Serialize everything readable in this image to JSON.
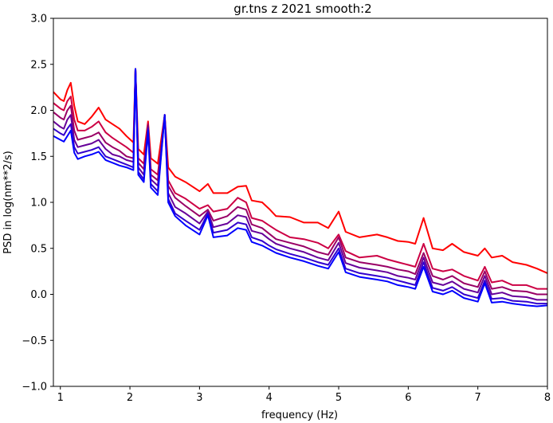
{
  "chart_data": {
    "type": "line",
    "title": "gr.tns z 2021 smooth:2",
    "xlabel": "frequency (Hz)",
    "ylabel": "PSD in log(nm**2/s)",
    "xlim": [
      0.9,
      8.0
    ],
    "ylim": [
      -1.0,
      3.0
    ],
    "xticks": [
      1,
      2,
      3,
      4,
      5,
      6,
      7,
      8
    ],
    "xtick_labels": [
      "1",
      "2",
      "3",
      "4",
      "5",
      "6",
      "7",
      "8"
    ],
    "yticks": [
      -1.0,
      -0.5,
      0.0,
      0.5,
      1.0,
      1.5,
      2.0,
      2.5,
      3.0
    ],
    "ytick_labels": [
      "−1.0",
      "−0.5",
      "0.0",
      "0.5",
      "1.0",
      "1.5",
      "2.0",
      "2.5",
      "3.0"
    ],
    "grid": false,
    "legend": false,
    "x": [
      0.9,
      1.0,
      1.05,
      1.1,
      1.15,
      1.2,
      1.25,
      1.35,
      1.45,
      1.55,
      1.65,
      1.75,
      1.85,
      1.95,
      2.05,
      2.08,
      2.12,
      2.2,
      2.26,
      2.3,
      2.4,
      2.5,
      2.55,
      2.65,
      2.8,
      3.0,
      3.12,
      3.2,
      3.4,
      3.55,
      3.67,
      3.75,
      3.9,
      4.0,
      4.1,
      4.3,
      4.5,
      4.7,
      4.85,
      5.0,
      5.1,
      5.3,
      5.55,
      5.7,
      5.85,
      6.0,
      6.1,
      6.22,
      6.35,
      6.5,
      6.63,
      6.8,
      7.0,
      7.1,
      7.2,
      7.35,
      7.5,
      7.7,
      7.85,
      8.0
    ],
    "series": [
      {
        "color": "#ff0000",
        "values": [
          2.2,
          2.12,
          2.1,
          2.22,
          2.3,
          2.05,
          1.88,
          1.85,
          1.93,
          2.03,
          1.9,
          1.85,
          1.8,
          1.72,
          1.65,
          2.45,
          1.58,
          1.52,
          1.88,
          1.48,
          1.42,
          1.95,
          1.38,
          1.28,
          1.22,
          1.12,
          1.2,
          1.1,
          1.1,
          1.17,
          1.18,
          1.02,
          1.0,
          0.93,
          0.85,
          0.84,
          0.78,
          0.78,
          0.72,
          0.9,
          0.68,
          0.62,
          0.65,
          0.62,
          0.58,
          0.57,
          0.55,
          0.83,
          0.5,
          0.48,
          0.55,
          0.46,
          0.42,
          0.5,
          0.4,
          0.42,
          0.35,
          0.32,
          0.28,
          0.23
        ]
      },
      {
        "color": "#cc0044",
        "values": [
          2.08,
          2.02,
          2.0,
          2.1,
          2.15,
          1.9,
          1.78,
          1.78,
          1.82,
          1.88,
          1.76,
          1.7,
          1.65,
          1.6,
          1.54,
          2.45,
          1.48,
          1.42,
          1.86,
          1.36,
          1.3,
          1.95,
          1.24,
          1.1,
          1.04,
          0.93,
          0.97,
          0.9,
          0.93,
          1.05,
          1.0,
          0.83,
          0.8,
          0.75,
          0.7,
          0.62,
          0.6,
          0.56,
          0.5,
          0.65,
          0.47,
          0.4,
          0.42,
          0.38,
          0.35,
          0.32,
          0.3,
          0.55,
          0.28,
          0.25,
          0.27,
          0.2,
          0.15,
          0.3,
          0.13,
          0.15,
          0.1,
          0.1,
          0.06,
          0.06
        ]
      },
      {
        "color": "#990066",
        "values": [
          1.98,
          1.92,
          1.9,
          2.0,
          2.05,
          1.78,
          1.68,
          1.7,
          1.72,
          1.76,
          1.65,
          1.6,
          1.56,
          1.5,
          1.48,
          2.45,
          1.43,
          1.36,
          1.84,
          1.3,
          1.24,
          1.95,
          1.18,
          1.05,
          0.96,
          0.85,
          0.92,
          0.8,
          0.85,
          0.95,
          0.92,
          0.76,
          0.72,
          0.66,
          0.6,
          0.56,
          0.52,
          0.46,
          0.43,
          0.62,
          0.4,
          0.35,
          0.32,
          0.3,
          0.27,
          0.25,
          0.22,
          0.45,
          0.2,
          0.16,
          0.2,
          0.12,
          0.08,
          0.25,
          0.06,
          0.08,
          0.04,
          0.03,
          0.0,
          0.0
        ]
      },
      {
        "color": "#660099",
        "values": [
          1.88,
          1.82,
          1.8,
          1.9,
          1.95,
          1.68,
          1.6,
          1.62,
          1.64,
          1.68,
          1.58,
          1.52,
          1.5,
          1.46,
          1.44,
          2.45,
          1.38,
          1.3,
          1.82,
          1.25,
          1.18,
          1.95,
          1.1,
          0.95,
          0.88,
          0.77,
          0.9,
          0.73,
          0.77,
          0.86,
          0.84,
          0.69,
          0.66,
          0.6,
          0.55,
          0.5,
          0.46,
          0.4,
          0.37,
          0.56,
          0.34,
          0.29,
          0.26,
          0.24,
          0.2,
          0.18,
          0.16,
          0.4,
          0.13,
          0.1,
          0.14,
          0.06,
          0.02,
          0.2,
          0.0,
          0.02,
          -0.02,
          -0.03,
          -0.06,
          -0.06
        ]
      },
      {
        "color": "#3300cc",
        "values": [
          1.8,
          1.75,
          1.73,
          1.8,
          1.85,
          1.6,
          1.53,
          1.55,
          1.57,
          1.6,
          1.5,
          1.47,
          1.44,
          1.41,
          1.38,
          2.45,
          1.33,
          1.25,
          1.8,
          1.2,
          1.12,
          1.95,
          1.04,
          0.88,
          0.8,
          0.7,
          0.88,
          0.67,
          0.7,
          0.78,
          0.76,
          0.62,
          0.58,
          0.53,
          0.49,
          0.44,
          0.4,
          0.35,
          0.32,
          0.5,
          0.28,
          0.23,
          0.2,
          0.18,
          0.15,
          0.12,
          0.1,
          0.35,
          0.07,
          0.04,
          0.08,
          0.0,
          -0.04,
          0.15,
          -0.05,
          -0.04,
          -0.07,
          -0.08,
          -0.1,
          -0.1
        ]
      },
      {
        "color": "#0000ff",
        "values": [
          1.72,
          1.68,
          1.66,
          1.72,
          1.78,
          1.54,
          1.47,
          1.5,
          1.52,
          1.55,
          1.46,
          1.43,
          1.4,
          1.38,
          1.35,
          2.45,
          1.3,
          1.22,
          1.78,
          1.16,
          1.08,
          1.95,
          1.0,
          0.85,
          0.75,
          0.65,
          0.86,
          0.62,
          0.64,
          0.72,
          0.7,
          0.57,
          0.53,
          0.49,
          0.45,
          0.4,
          0.36,
          0.31,
          0.28,
          0.46,
          0.24,
          0.19,
          0.16,
          0.14,
          0.1,
          0.08,
          0.06,
          0.3,
          0.03,
          0.0,
          0.04,
          -0.04,
          -0.08,
          0.12,
          -0.09,
          -0.08,
          -0.1,
          -0.12,
          -0.13,
          -0.12
        ]
      }
    ]
  }
}
